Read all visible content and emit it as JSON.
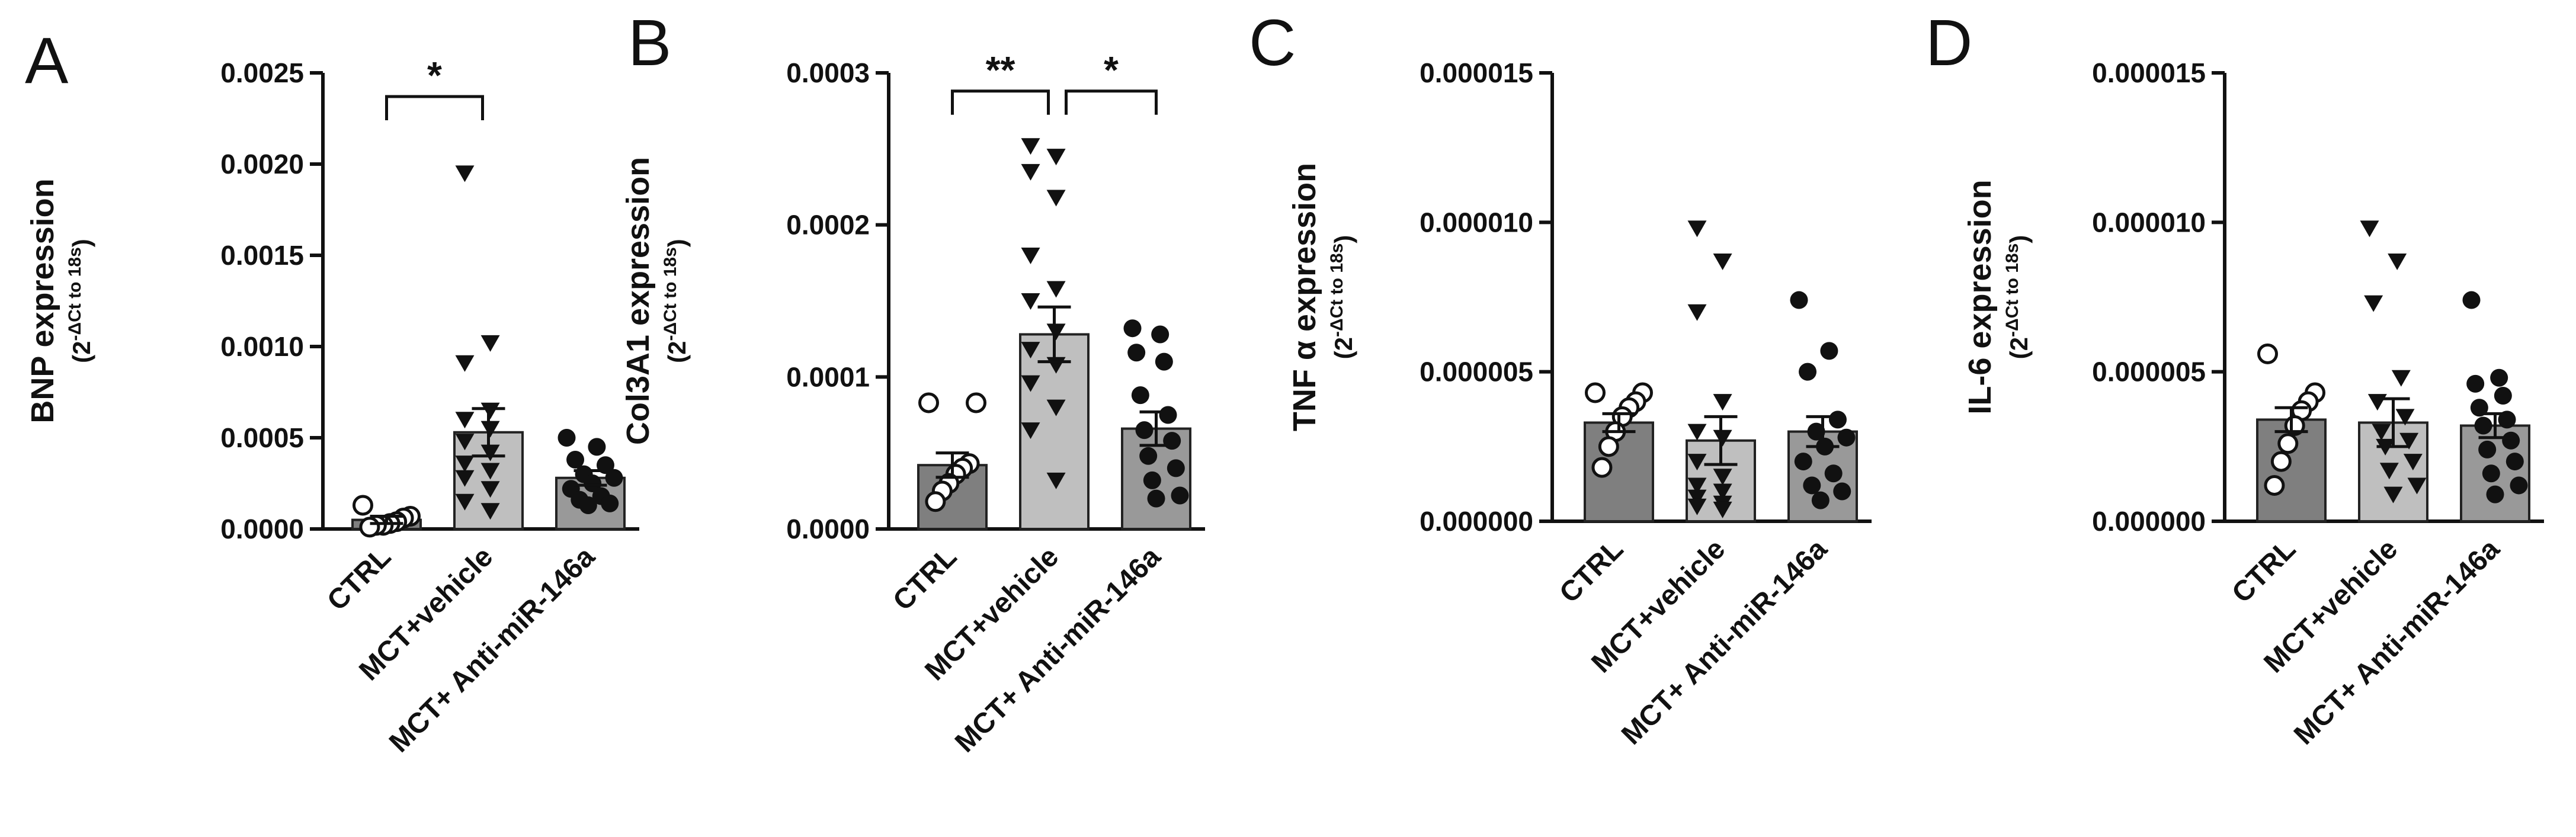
{
  "figure": {
    "categories": [
      "CTRL",
      "MCT+vehicle",
      "MCT+ Anti-miR-146a"
    ],
    "bar_colors": [
      "#7f7f7f",
      "#bfbfbf",
      "#999999"
    ],
    "marker_types": [
      "circle-open",
      "triangle-down",
      "circle-filled"
    ],
    "ylabel_subscript_pre": "(2",
    "ylabel_superscript": "-ΔCt to 18s",
    "ylabel_subscript_post": ")"
  },
  "chart_data": [
    {
      "panel": "A",
      "type": "bar",
      "ylabel": "BNP expression",
      "ylim": [
        0,
        0.0025
      ],
      "yticks": [
        "0.0000",
        "0.0005",
        "0.0010",
        "0.0015",
        "0.0020",
        "0.0025"
      ],
      "categories": [
        "CTRL",
        "MCT+vehicle",
        "MCT+ Anti-miR-146a"
      ],
      "means": [
        5e-05,
        0.00053,
        0.00028
      ],
      "sem": [
        2e-05,
        0.00013,
        4e-05
      ],
      "points": [
        [
          0.00013,
          7e-05,
          6e-05,
          4e-05,
          3e-05,
          2e-05,
          2e-05,
          1e-05
        ],
        [
          0.00195,
          0.00102,
          0.00091,
          0.00065,
          0.0006,
          0.00055,
          0.00048,
          0.00042,
          0.00036,
          0.00032,
          0.00028,
          0.00022,
          0.00015,
          0.0001
        ],
        [
          0.0005,
          0.00045,
          0.00038,
          0.00035,
          0.0003,
          0.00028,
          0.00025,
          0.00022,
          0.00018,
          0.00016,
          0.00014,
          0.00013
        ]
      ],
      "significance": [
        {
          "from": 0,
          "to": 1,
          "label": "*",
          "y": 0.00237
        }
      ]
    },
    {
      "panel": "B",
      "type": "bar",
      "ylabel": "Col3A1 expression",
      "ylim": [
        0,
        0.0003
      ],
      "yticks": [
        "0.0000",
        "0.0001",
        "0.0002",
        "0.0003"
      ],
      "categories": [
        "CTRL",
        "MCT+vehicle",
        "MCT+ Anti-miR-146a"
      ],
      "means": [
        4.2e-05,
        0.000128,
        6.6e-05
      ],
      "sem": [
        8e-06,
        1.8e-05,
        1.1e-05
      ],
      "points": [
        [
          8.3e-05,
          8.3e-05,
          4.3e-05,
          4e-05,
          3.6e-05,
          3e-05,
          2.5e-05,
          1.8e-05
        ],
        [
          0.000252,
          0.000245,
          0.000235,
          0.000218,
          0.00018,
          0.000158,
          0.00015,
          0.00013,
          0.000118,
          0.000108,
          9.6e-05,
          8e-05,
          6.5e-05,
          3.2e-05
        ],
        [
          0.000132,
          0.000128,
          0.000116,
          0.00011,
          8.8e-05,
          7.5e-05,
          6.5e-05,
          5.8e-05,
          4.8e-05,
          4e-05,
          3.2e-05,
          2.2e-05,
          2e-05
        ]
      ],
      "significance": [
        {
          "from": 0,
          "to": 1,
          "label": "**",
          "y": 0.000288
        },
        {
          "from": 1,
          "to": 2,
          "label": "*",
          "y": 0.000288
        }
      ]
    },
    {
      "panel": "C",
      "type": "bar",
      "ylabel": "TNF α expression",
      "ylim": [
        0,
        1.5e-05
      ],
      "yticks": [
        "0.000000",
        "0.000005",
        "0.000010",
        "0.000015"
      ],
      "categories": [
        "CTRL",
        "MCT+vehicle",
        "MCT+ Anti-miR-146a"
      ],
      "means": [
        3.3e-06,
        2.7e-06,
        3e-06
      ],
      "sem": [
        3e-07,
        8e-07,
        5e-07
      ],
      "points": [
        [
          4.3e-06,
          4.3e-06,
          4e-06,
          3.8e-06,
          3.5e-06,
          3e-06,
          2.5e-06,
          1.8e-06
        ],
        [
          9.8e-06,
          8.7e-06,
          7e-06,
          4e-06,
          3e-06,
          2.8e-06,
          2e-06,
          1.5e-06,
          1.2e-06,
          1e-06,
          8e-07,
          6e-07,
          5e-07,
          4e-07
        ],
        [
          7.4e-06,
          5.7e-06,
          5e-06,
          3.4e-06,
          3e-06,
          2.8e-06,
          2.5e-06,
          2e-06,
          1.6e-06,
          1.2e-06,
          1e-06,
          7e-07
        ]
      ],
      "significance": []
    },
    {
      "panel": "D",
      "type": "bar",
      "ylabel": "IL-6 expression",
      "ylim": [
        0,
        1.5e-05
      ],
      "yticks": [
        "0.000000",
        "0.000005",
        "0.000010",
        "0.000015"
      ],
      "categories": [
        "CTRL",
        "MCT+vehicle",
        "MCT+ Anti-miR-146a"
      ],
      "means": [
        3.4e-06,
        3.3e-06,
        3.2e-06
      ],
      "sem": [
        4e-07,
        8e-07,
        4e-07
      ],
      "points": [
        [
          5.6e-06,
          4.3e-06,
          4e-06,
          3.7e-06,
          3.2e-06,
          2.6e-06,
          2e-06,
          1.2e-06
        ],
        [
          9.8e-06,
          8.7e-06,
          7.3e-06,
          4.8e-06,
          4e-06,
          3.5e-06,
          3e-06,
          2.7e-06,
          2.5e-06,
          2e-06,
          1.7e-06,
          1.2e-06,
          9e-07
        ],
        [
          7.4e-06,
          4.8e-06,
          4.6e-06,
          4.2e-06,
          3.8e-06,
          3.4e-06,
          3.2e-06,
          2.7e-06,
          2.4e-06,
          2e-06,
          1.6e-06,
          1.2e-06,
          9e-07
        ]
      ],
      "significance": []
    }
  ]
}
